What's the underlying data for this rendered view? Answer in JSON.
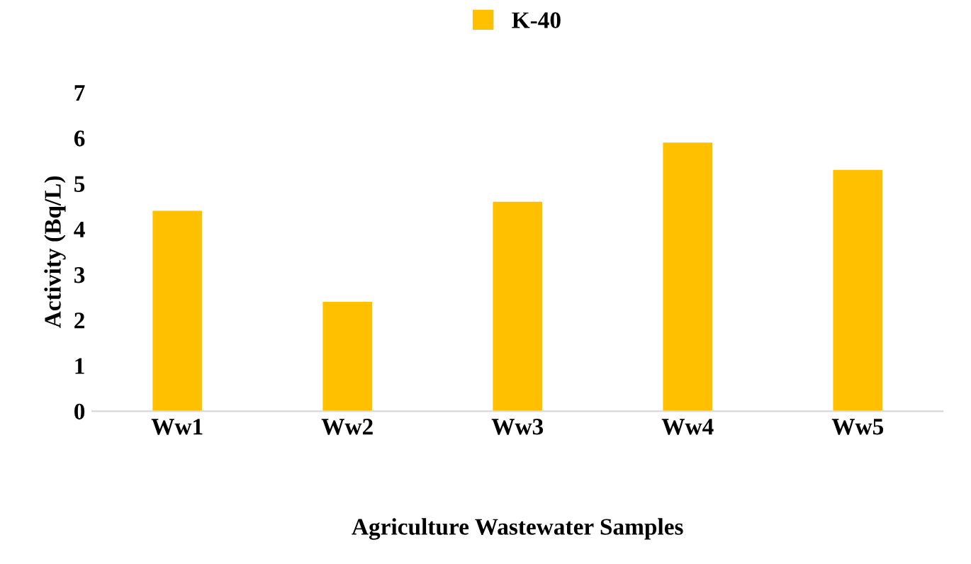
{
  "chart_data": {
    "type": "bar",
    "xlabel": "Agriculture Wastewater Samples",
    "ylabel": "Activity (Bq/L)",
    "categories": [
      "Ww1",
      "Ww2",
      "Ww3",
      "Ww4",
      "Ww5"
    ],
    "series": [
      {
        "name": "K-40",
        "color": "#ffc000",
        "values": [
          4.4,
          2.4,
          4.6,
          5.9,
          5.3
        ]
      }
    ],
    "ylim": [
      0,
      7
    ],
    "yticks": [
      0,
      1,
      2,
      3,
      4,
      5,
      6,
      7
    ],
    "grid": false,
    "legend": "top"
  }
}
